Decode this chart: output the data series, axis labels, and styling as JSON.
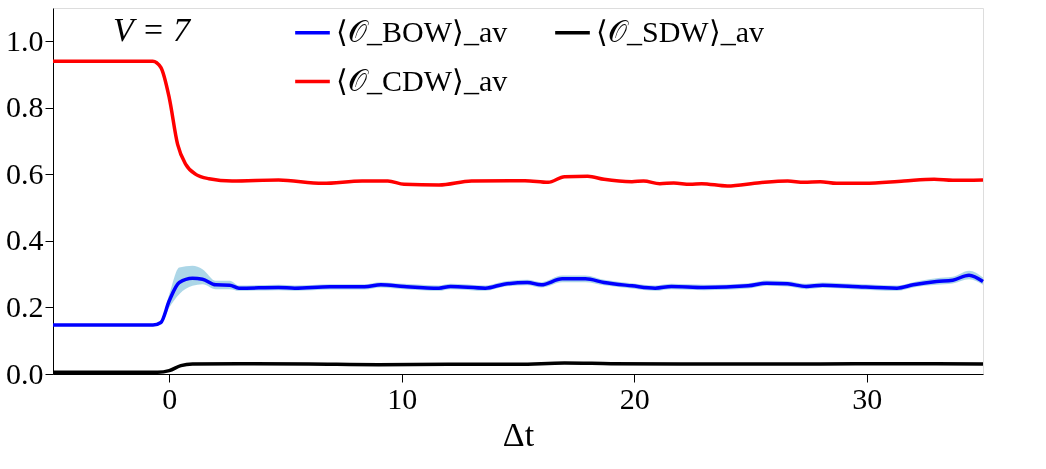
{
  "chart_data": {
    "type": "line",
    "xlabel": "Δt",
    "annotations": [
      "V = 7"
    ],
    "xlim": [
      -5,
      35
    ],
    "ylim": [
      0,
      1.1
    ],
    "xticks": [
      0,
      10,
      20,
      30
    ],
    "yticks": [
      {
        "value": 0,
        "label": "0.0"
      },
      0.2,
      0.4,
      0.6,
      0.8,
      {
        "value": 1,
        "label": "1.0"
      }
    ],
    "grid": false,
    "legend": "top",
    "marker": "none",
    "line_style": "solid",
    "series": [
      {
        "name": "⟨𝒪_BOW⟩_av",
        "color": "#0000ff",
        "x": [
          -5,
          -0.7,
          -0.36,
          0,
          0.43,
          1.0,
          1.43,
          2.0,
          2.6,
          3.0,
          4.7,
          5.4,
          6.9,
          8.4,
          9.1,
          10.1,
          11.6,
          12.1,
          13.6,
          14.4,
          15.4,
          16.0,
          16.9,
          17.9,
          18.7,
          19.9,
          20.9,
          21.6,
          23.0,
          24.9,
          25.7,
          26.6,
          27.4,
          28.1,
          29.4,
          31.3,
          32.0,
          33.0,
          33.7,
          34.4,
          35
        ],
        "values": [
          0.147,
          0.147,
          0.155,
          0.22,
          0.275,
          0.288,
          0.285,
          0.268,
          0.267,
          0.258,
          0.26,
          0.258,
          0.262,
          0.262,
          0.268,
          0.263,
          0.258,
          0.263,
          0.258,
          0.27,
          0.275,
          0.268,
          0.286,
          0.286,
          0.275,
          0.265,
          0.258,
          0.263,
          0.26,
          0.265,
          0.273,
          0.271,
          0.263,
          0.267,
          0.263,
          0.258,
          0.268,
          0.278,
          0.282,
          0.297,
          0.278
        ],
        "lower": [
          0.147,
          0.147,
          0.153,
          0.2,
          0.24,
          0.265,
          0.27,
          0.255,
          0.255,
          0.25,
          0.252,
          0.25,
          0.254,
          0.254,
          0.26,
          0.255,
          0.25,
          0.255,
          0.25,
          0.262,
          0.267,
          0.26,
          0.276,
          0.276,
          0.267,
          0.257,
          0.25,
          0.255,
          0.252,
          0.257,
          0.265,
          0.263,
          0.255,
          0.259,
          0.255,
          0.25,
          0.26,
          0.268,
          0.272,
          0.285,
          0.268
        ],
        "upper": [
          0.147,
          0.147,
          0.158,
          0.24,
          0.32,
          0.325,
          0.315,
          0.28,
          0.28,
          0.266,
          0.268,
          0.266,
          0.27,
          0.27,
          0.276,
          0.271,
          0.266,
          0.271,
          0.266,
          0.278,
          0.283,
          0.276,
          0.296,
          0.296,
          0.283,
          0.273,
          0.266,
          0.271,
          0.268,
          0.273,
          0.281,
          0.279,
          0.271,
          0.275,
          0.271,
          0.266,
          0.276,
          0.288,
          0.292,
          0.31,
          0.29
        ]
      },
      {
        "name": "⟨𝒪_CDW⟩_av",
        "color": "#ff0000",
        "x": [
          -5,
          -0.71,
          -0.36,
          0,
          0.36,
          0.71,
          1.14,
          1.71,
          2.7,
          4.7,
          6.6,
          8.3,
          9.4,
          10.1,
          11.6,
          13.0,
          15.3,
          16.3,
          17.0,
          18.0,
          18.7,
          19.9,
          20.4,
          21.1,
          21.7,
          22.4,
          22.9,
          24.0,
          25.4,
          26.6,
          27.3,
          28.0,
          28.7,
          29.9,
          31.6,
          32.9,
          33.7,
          35
        ],
        "values": [
          0.94,
          0.94,
          0.921,
          0.83,
          0.69,
          0.63,
          0.6,
          0.587,
          0.58,
          0.583,
          0.573,
          0.58,
          0.58,
          0.57,
          0.568,
          0.58,
          0.581,
          0.576,
          0.593,
          0.594,
          0.585,
          0.578,
          0.58,
          0.572,
          0.574,
          0.57,
          0.572,
          0.565,
          0.575,
          0.58,
          0.576,
          0.578,
          0.573,
          0.573,
          0.58,
          0.585,
          0.582,
          0.583
        ]
      },
      {
        "name": "⟨𝒪_SDW⟩_av",
        "color": "#000000",
        "x": [
          -5,
          -0.5,
          0,
          0.5,
          1.0,
          3,
          6,
          9,
          12,
          15,
          17,
          19,
          22,
          25,
          28,
          31,
          33,
          35
        ],
        "values": [
          0.005,
          0.005,
          0.01,
          0.025,
          0.03,
          0.031,
          0.03,
          0.028,
          0.029,
          0.029,
          0.033,
          0.031,
          0.03,
          0.03,
          0.03,
          0.031,
          0.031,
          0.03
        ]
      }
    ]
  }
}
